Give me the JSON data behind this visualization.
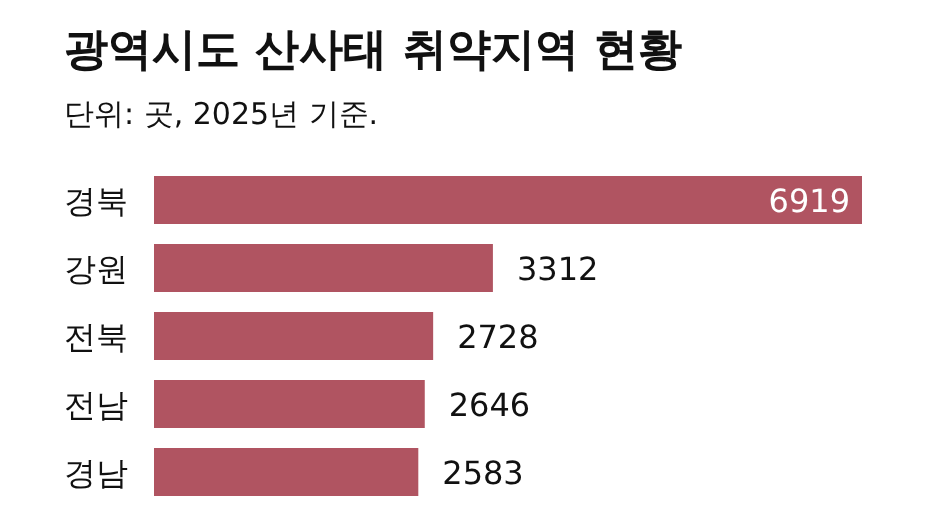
{
  "chart_data": {
    "type": "bar",
    "orientation": "horizontal",
    "title": "광역시도 산사태 취약지역 현황",
    "subtitle": "단위: 곳, 2025년 기준.",
    "categories": [
      "경북",
      "강원",
      "전북",
      "전남",
      "경남"
    ],
    "values": [
      6919,
      3312,
      2728,
      2646,
      2583
    ],
    "color": "#b05461",
    "data_labels": true
  }
}
